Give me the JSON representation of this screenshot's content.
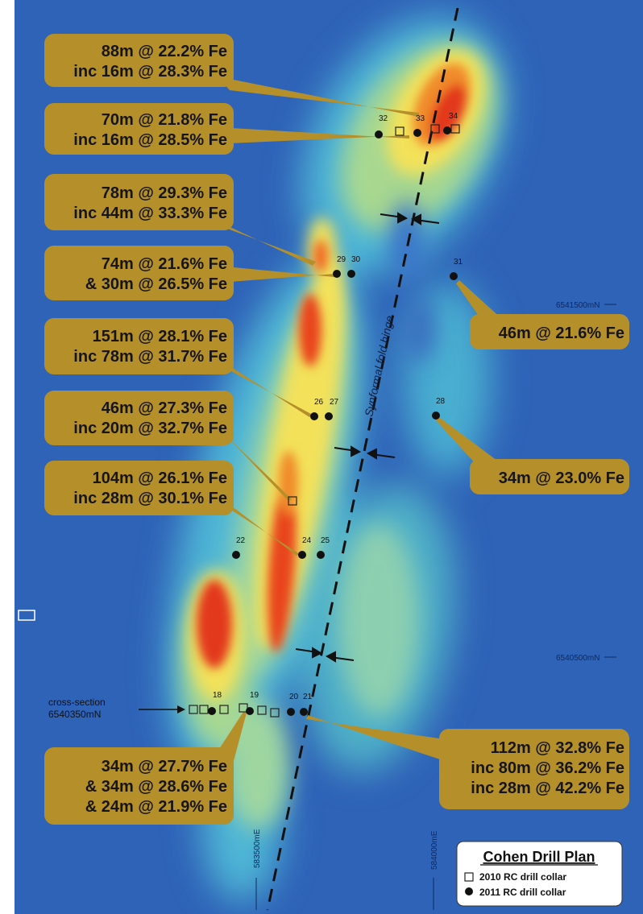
{
  "map": {
    "legend": {
      "title": "Cohen Drill Plan",
      "item_2010": "2010 RC drill collar",
      "item_2011": "2011 RC drill collar"
    },
    "axis_label": "Synformal fold hinge",
    "cross_section": {
      "line1": "cross-section",
      "line2": "6540350mN"
    },
    "grid": {
      "n1": "6541500mN",
      "n2": "6540500mN",
      "e1": "583500mE",
      "e2": "584000mE"
    },
    "holes": {
      "h18": "18",
      "h19": "19",
      "h20": "20",
      "h21": "21",
      "h22": "22",
      "h24": "24",
      "h25": "25",
      "h26": "26",
      "h27": "27",
      "h28": "28",
      "h29": "29",
      "h30": "30",
      "h31": "31",
      "h32": "32",
      "h33": "33",
      "h34": "34"
    },
    "callouts": {
      "c1": {
        "l1": "88m @ 22.2% Fe",
        "l2": "inc 16m @ 28.3% Fe"
      },
      "c2": {
        "l1": "70m @ 21.8% Fe",
        "l2": "inc 16m @ 28.5% Fe"
      },
      "c3": {
        "l1": "78m @ 29.3% Fe",
        "l2": "inc 44m @ 33.3% Fe"
      },
      "c4": {
        "l1": "74m @ 21.6% Fe",
        "l2": "&   30m @ 26.5% Fe"
      },
      "c5": {
        "l1": "151m @ 28.1% Fe",
        "l2": "inc 78m @ 31.7% Fe"
      },
      "c6": {
        "l1": "46m @ 27.3% Fe",
        "l2": "inc 20m @ 32.7% Fe"
      },
      "c7": {
        "l1": "104m @ 26.1% Fe",
        "l2": "inc 28m @ 30.1% Fe"
      },
      "c8": {
        "l1": "34m @ 27.7% Fe",
        "l2": "&   34m @ 28.6% Fe",
        "l3": "&   24m @ 21.9% Fe"
      },
      "c9": {
        "l1": "46m @ 21.6% Fe"
      },
      "c10": {
        "l1": "34m @ 23.0% Fe"
      },
      "c11": {
        "l1": "112m @ 32.8% Fe",
        "l2": "inc 80m @ 36.2% Fe",
        "l3": "inc 28m @ 42.2% Fe"
      }
    }
  }
}
